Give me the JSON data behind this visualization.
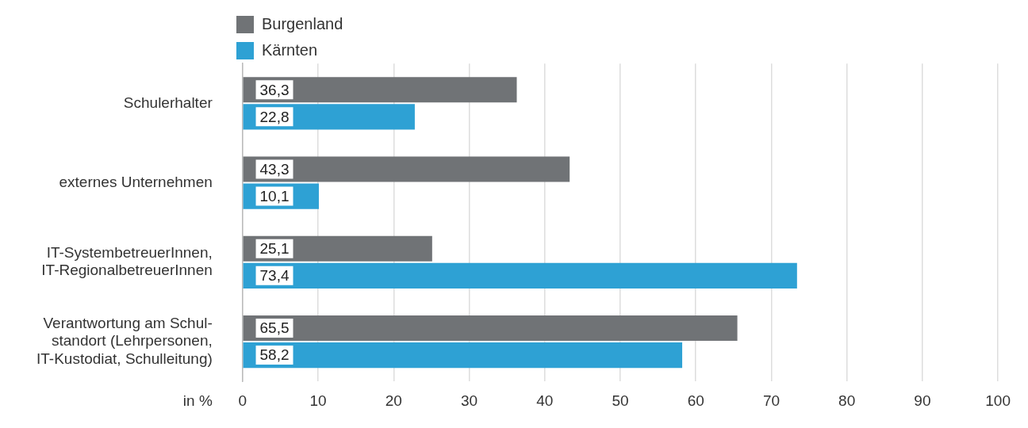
{
  "chart_data": {
    "type": "bar",
    "orientation": "horizontal",
    "categories": [
      "Schulerhalter",
      "externes Unternehmen",
      "IT-SystembetreuerInnen,\nIT-RegionalbetreuerInnen",
      "Verantwortung am Schul-\nstandort (Lehrpersonen,\nIT-Kustodiat, Schulleitung)"
    ],
    "series": [
      {
        "name": "Burgenland",
        "color": "#707376",
        "values": [
          36.3,
          43.3,
          25.1,
          65.5
        ],
        "value_labels": [
          "36,3",
          "43,3",
          "25,1",
          "65,5"
        ]
      },
      {
        "name": "Kärnten",
        "color": "#2ea1d4",
        "values": [
          22.8,
          10.1,
          73.4,
          58.2
        ],
        "value_labels": [
          "22,8",
          "10,1",
          "73,4",
          "58,2"
        ]
      }
    ],
    "xlabel": "in %",
    "xlim": [
      0,
      100
    ],
    "xticks": [
      0,
      10,
      20,
      30,
      40,
      50,
      60,
      70,
      80,
      90,
      100
    ],
    "grid": "x",
    "legend": "top"
  }
}
